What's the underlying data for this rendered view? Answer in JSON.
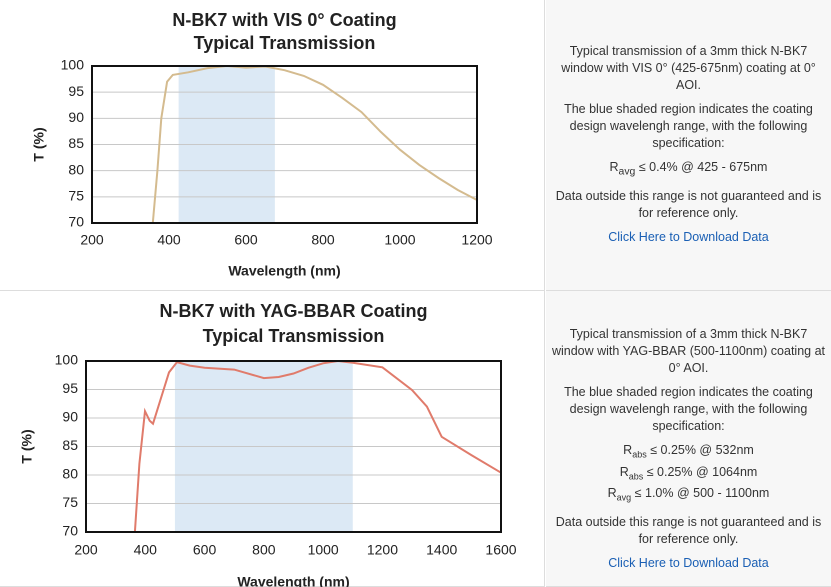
{
  "chart_data": [
    {
      "type": "line",
      "title": "N-BK7 with VIS 0° Coating",
      "subtitle": "Typical Transmission",
      "x_label": "Wavelength (nm)",
      "y_label": "T (%)",
      "x": [
        358,
        370,
        380,
        395,
        410,
        450,
        500,
        550,
        600,
        650,
        700,
        750,
        800,
        850,
        900,
        950,
        1000,
        1050,
        1100,
        1150,
        1200
      ],
      "values": [
        70,
        80,
        90,
        97,
        98.3,
        98.8,
        99.6,
        100,
        99.7,
        99.9,
        99.2,
        98.1,
        96.4,
        93.9,
        91.2,
        87.4,
        84,
        81.1,
        78.6,
        76.3,
        74.4
      ],
      "color": "#d4bb8f",
      "shade": [
        425,
        675
      ],
      "shade_color": "#dce9f5",
      "xlim": [
        200,
        1200
      ],
      "xticks": [
        200,
        400,
        600,
        800,
        1000,
        1200
      ],
      "ylim": [
        70,
        100
      ],
      "yticks": [
        70,
        75,
        80,
        85,
        90,
        95,
        100
      ],
      "grid": true
    },
    {
      "type": "line",
      "title": "N-BK7 with YAG-BBAR Coating",
      "subtitle": "Typical Transmission",
      "x_label": "Wavelength (nm)",
      "y_label": "T (%)",
      "x": [
        365,
        380,
        399,
        415,
        426,
        450,
        480,
        507,
        550,
        600,
        700,
        800,
        850,
        900,
        950,
        1000,
        1050,
        1100,
        1200,
        1300,
        1350,
        1400,
        1500,
        1600
      ],
      "values": [
        70,
        82,
        91.2,
        89.5,
        89,
        93,
        98,
        99.8,
        99.2,
        98.8,
        98.5,
        97,
        97.2,
        97.8,
        98.8,
        99.6,
        100,
        99.7,
        98.9,
        94.9,
        92,
        86.7,
        83.5,
        80.4
      ],
      "color": "#e07b6b",
      "shade": [
        500,
        1100
      ],
      "shade_color": "#dce9f5",
      "xlim": [
        200,
        1600
      ],
      "xticks": [
        200,
        400,
        600,
        800,
        1000,
        1200,
        1400,
        1600
      ],
      "ylim": [
        70,
        100
      ],
      "yticks": [
        70,
        75,
        80,
        85,
        90,
        95,
        100
      ],
      "grid": true
    }
  ],
  "panels": [
    {
      "intro": "Typical transmission of a 3mm thick N-BK7 window with VIS 0° (425-675nm) coating at 0° AOI.",
      "shade_note": "The blue shaded region indicates the coating design wavelengh range, with the following specification:",
      "specs": [
        {
          "symbol": "R",
          "sub": "avg",
          "text": "≤ 0.4% @ 425 - 675nm"
        }
      ],
      "disclaimer": "Data outside this range is not guaranteed and is for reference only.",
      "link": "Click Here to Download Data"
    },
    {
      "intro": "Typical transmission of a 3mm thick N-BK7 window with YAG-BBAR (500-1100nm) coating at 0° AOI.",
      "shade_note": "The blue shaded region indicates the coating design wavelengh range, with the following specification:",
      "specs": [
        {
          "symbol": "R",
          "sub": "abs",
          "text": "≤ 0.25% @ 532nm"
        },
        {
          "symbol": "R",
          "sub": "abs",
          "text": "≤ 0.25% @ 1064nm"
        },
        {
          "symbol": "R",
          "sub": "avg",
          "text": "≤ 1.0% @ 500 - 1100nm"
        }
      ],
      "disclaimer": "Data outside this range is not guaranteed and is for reference only.",
      "link": "Click Here to Download Data"
    }
  ]
}
